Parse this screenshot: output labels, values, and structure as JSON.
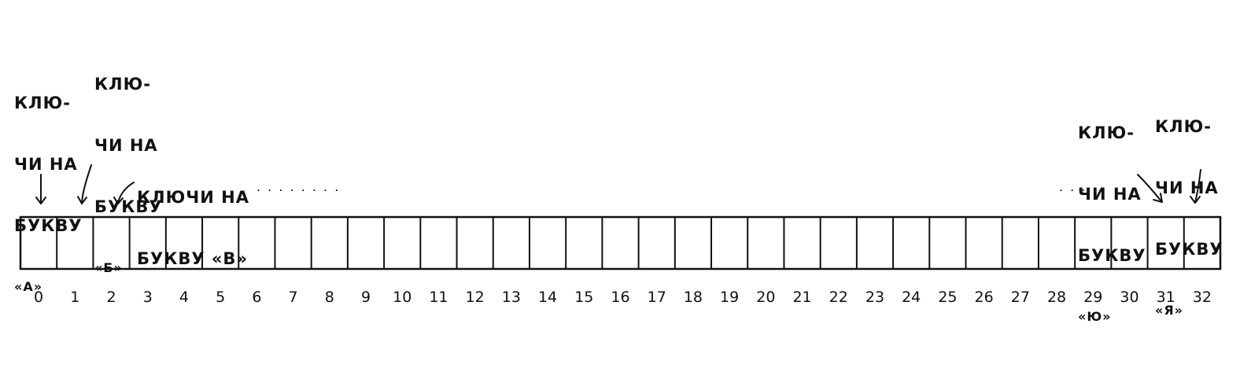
{
  "annotations": {
    "a": [
      "КЛЮ-",
      "ЧИ НА",
      "БУКВУ",
      "«А»"
    ],
    "b": [
      "КЛЮ-",
      "ЧИ НА",
      "БУКВУ",
      "«Б»"
    ],
    "v": [
      "КЛЮЧИ НА",
      "БУКВУ «В»"
    ],
    "yu": [
      "КЛЮ-",
      "ЧИ НА",
      "БУКВУ",
      "«Ю»"
    ],
    "ya": [
      "КЛЮ-",
      "ЧИ НА",
      "БУКВУ",
      "«Я»"
    ],
    "ellipsis_left": ". . . . . . . .",
    "ellipsis_right": ". . . ."
  },
  "array": {
    "indices": [
      "0",
      "1",
      "2",
      "3",
      "4",
      "5",
      "6",
      "7",
      "8",
      "9",
      "10",
      "11",
      "12",
      "13",
      "14",
      "15",
      "16",
      "17",
      "18",
      "19",
      "20",
      "21",
      "22",
      "23",
      "24",
      "25",
      "26",
      "27",
      "28",
      "29",
      "30",
      "31",
      "32"
    ]
  }
}
